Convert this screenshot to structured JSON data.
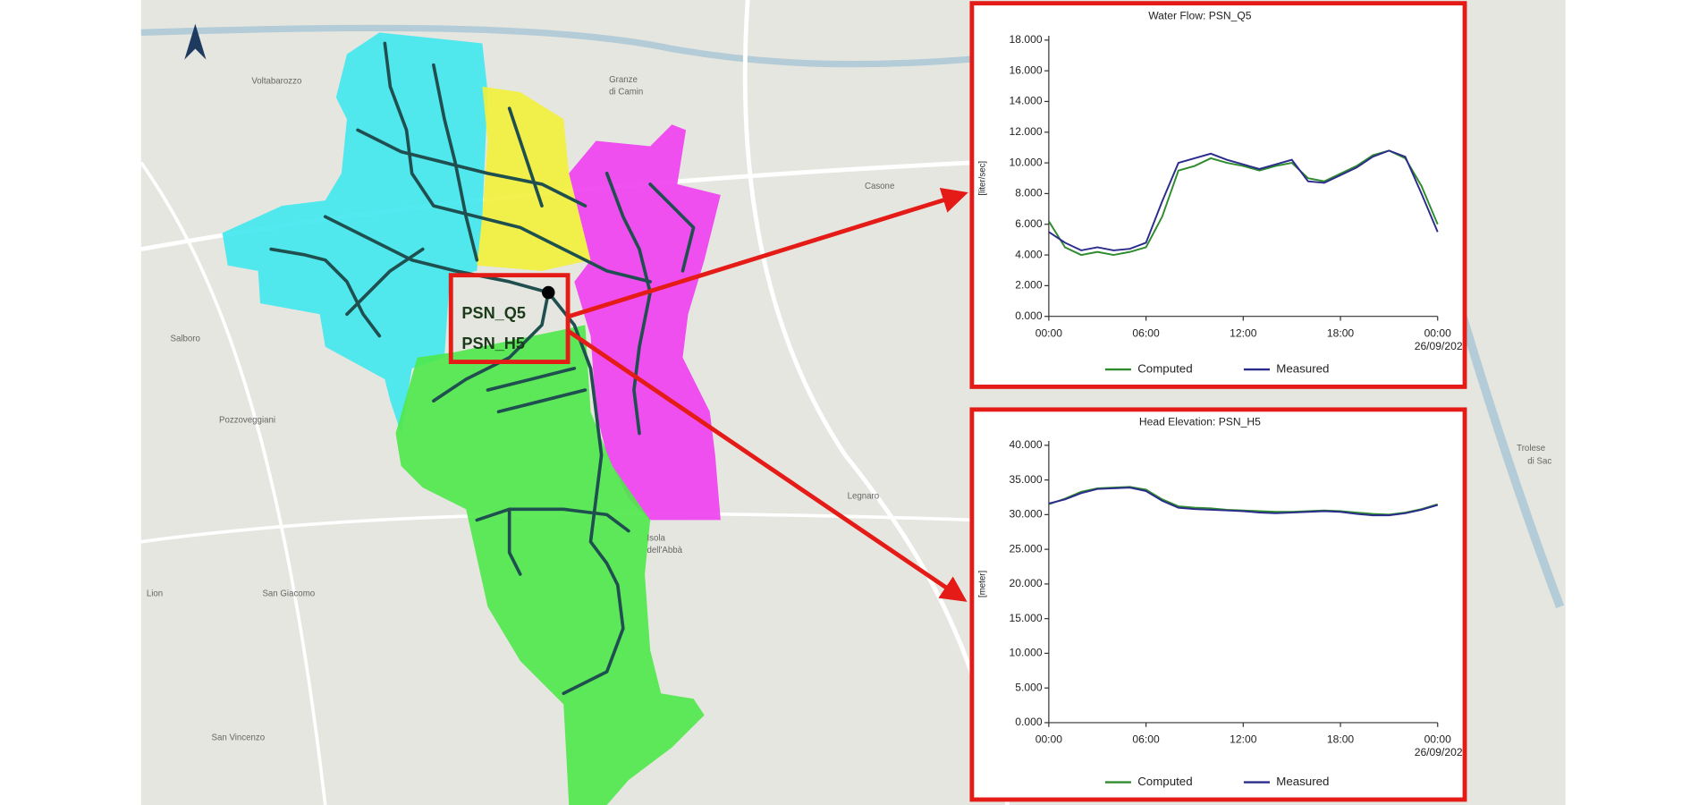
{
  "map": {
    "places": [
      {
        "name": "Voltabarozzo",
        "x": 232,
        "y": 75
      },
      {
        "name": "Granze",
        "x": 562,
        "y": 74
      },
      {
        "name": "di Camin",
        "x": 562,
        "y": 85
      },
      {
        "name": "Casone",
        "x": 798,
        "y": 172
      },
      {
        "name": "Salboro",
        "x": 157,
        "y": 313
      },
      {
        "name": "Pozzoveggiani",
        "x": 202,
        "y": 388
      },
      {
        "name": "Legnaro",
        "x": 782,
        "y": 458
      },
      {
        "name": "Isola",
        "x": 597,
        "y": 497
      },
      {
        "name": "dell'Abbà",
        "x": 597,
        "y": 508
      },
      {
        "name": "San Giacomo",
        "x": 242,
        "y": 548
      },
      {
        "name": "Lion",
        "x": 135,
        "y": 548
      },
      {
        "name": "San Vincenzo",
        "x": 195,
        "y": 681
      },
      {
        "name": "Trolese",
        "x": 1400,
        "y": 414
      },
      {
        "name": "di Sac",
        "x": 1410,
        "y": 426
      }
    ],
    "markers": [
      "PSN_Q5",
      "PSN_H5"
    ]
  },
  "chart_data": [
    {
      "type": "line",
      "title": "Water Flow: PSN_Q5",
      "ylabel": "[liter/sec]",
      "annotation": "26/09/202",
      "x": [
        0,
        1,
        2,
        3,
        4,
        5,
        6,
        7,
        8,
        9,
        10,
        11,
        12,
        13,
        14,
        15,
        16,
        17,
        18,
        19,
        20,
        21,
        22,
        23,
        24
      ],
      "xlim": [
        0,
        24
      ],
      "xticks": [
        {
          "value": 0,
          "label": "00:00"
        },
        {
          "value": 6,
          "label": "06:00"
        },
        {
          "value": 12,
          "label": "12:00"
        },
        {
          "value": 18,
          "label": "18:00"
        },
        {
          "value": 24,
          "label": "00:00"
        }
      ],
      "ylim": [
        0,
        18
      ],
      "yticks": [
        {
          "value": 0,
          "label": "0.000"
        },
        {
          "value": 2,
          "label": "2.000"
        },
        {
          "value": 4,
          "label": "4.000"
        },
        {
          "value": 6,
          "label": "6.000"
        },
        {
          "value": 8,
          "label": "8.000"
        },
        {
          "value": 10,
          "label": "10.000"
        },
        {
          "value": 12,
          "label": "12.000"
        },
        {
          "value": 14,
          "label": "14.000"
        },
        {
          "value": 16,
          "label": "16.000"
        },
        {
          "value": 18,
          "label": "18.000"
        }
      ],
      "grid": false,
      "legend": "bottom",
      "series": [
        {
          "name": "Computed",
          "color": "#2e8b2e",
          "values": [
            6.2,
            4.5,
            4.0,
            4.2,
            4.0,
            4.2,
            4.5,
            6.5,
            9.5,
            9.8,
            10.3,
            10.0,
            9.8,
            9.5,
            9.8,
            10.0,
            9.0,
            8.8,
            9.3,
            9.8,
            10.5,
            10.8,
            10.3,
            8.5,
            6.0
          ]
        },
        {
          "name": "Measured",
          "color": "#2b2b8c",
          "values": [
            5.5,
            4.8,
            4.3,
            4.5,
            4.3,
            4.4,
            4.8,
            7.5,
            10.0,
            10.3,
            10.6,
            10.2,
            9.9,
            9.6,
            9.9,
            10.2,
            8.8,
            8.7,
            9.2,
            9.7,
            10.4,
            10.8,
            10.4,
            8.0,
            5.5
          ]
        }
      ]
    },
    {
      "type": "line",
      "title": "Head Elevation: PSN_H5",
      "ylabel": "[meter]",
      "annotation": "26/09/202",
      "x": [
        0,
        1,
        2,
        3,
        4,
        5,
        6,
        7,
        8,
        9,
        10,
        11,
        12,
        13,
        14,
        15,
        16,
        17,
        18,
        19,
        20,
        21,
        22,
        23,
        24
      ],
      "xlim": [
        0,
        24
      ],
      "xticks": [
        {
          "value": 0,
          "label": "00:00"
        },
        {
          "value": 6,
          "label": "06:00"
        },
        {
          "value": 12,
          "label": "12:00"
        },
        {
          "value": 18,
          "label": "18:00"
        },
        {
          "value": 24,
          "label": "00:00"
        }
      ],
      "ylim": [
        0,
        40
      ],
      "yticks": [
        {
          "value": 0,
          "label": "0.000"
        },
        {
          "value": 5,
          "label": "5.000"
        },
        {
          "value": 10,
          "label": "10.000"
        },
        {
          "value": 15,
          "label": "15.000"
        },
        {
          "value": 20,
          "label": "20.000"
        },
        {
          "value": 25,
          "label": "25.000"
        },
        {
          "value": 30,
          "label": "30.000"
        },
        {
          "value": 35,
          "label": "35.000"
        },
        {
          "value": 40,
          "label": "40.000"
        }
      ],
      "grid": false,
      "legend": "bottom",
      "series": [
        {
          "name": "Computed",
          "color": "#2e8b2e",
          "values": [
            31.5,
            32.3,
            33.3,
            33.8,
            33.9,
            34.0,
            33.6,
            32.2,
            31.2,
            31.0,
            30.9,
            30.7,
            30.6,
            30.5,
            30.4,
            30.4,
            30.5,
            30.6,
            30.5,
            30.3,
            30.1,
            30.0,
            30.3,
            30.8,
            31.5
          ]
        },
        {
          "name": "Measured",
          "color": "#2b2b8c",
          "values": [
            31.6,
            32.2,
            33.1,
            33.7,
            33.8,
            33.9,
            33.4,
            32.0,
            31.0,
            30.8,
            30.7,
            30.6,
            30.5,
            30.3,
            30.2,
            30.3,
            30.4,
            30.5,
            30.4,
            30.1,
            29.9,
            29.9,
            30.2,
            30.7,
            31.4
          ]
        }
      ]
    }
  ]
}
